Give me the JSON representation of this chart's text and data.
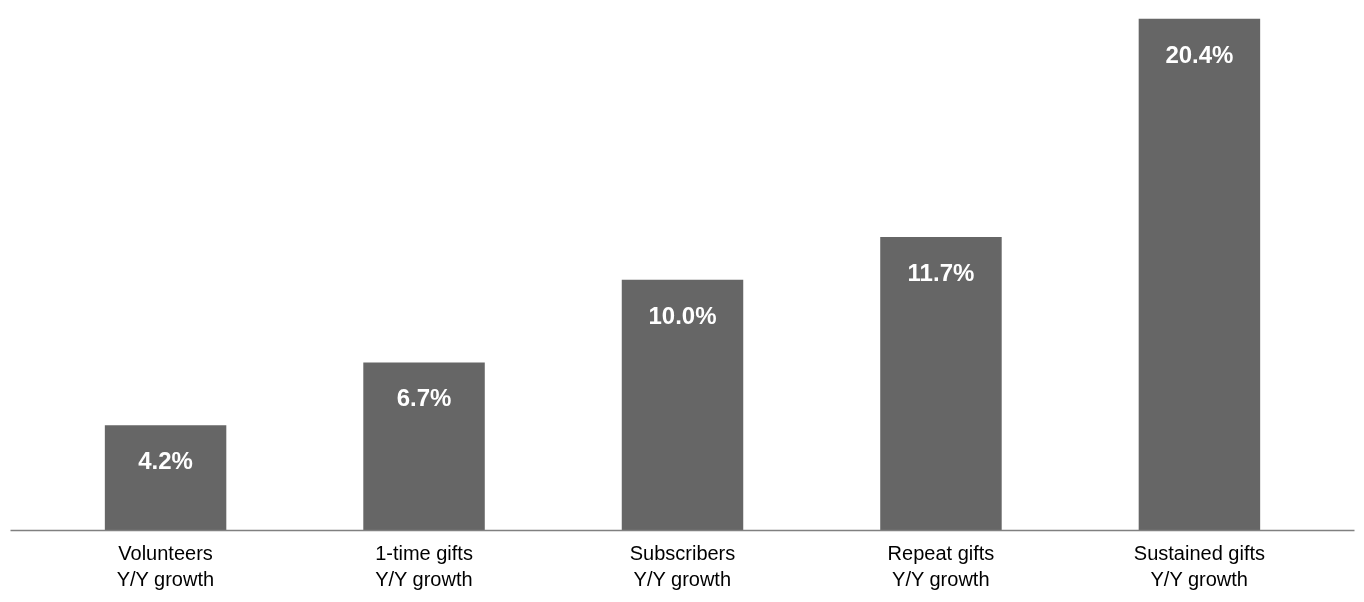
{
  "chart_data": {
    "type": "bar",
    "categories": [
      "Volunteers\nY/Y growth",
      "1-time gifts\nY/Y growth",
      "Subscribers\nY/Y growth",
      "Repeat gifts\nY/Y growth",
      "Sustained gifts\nY/Y growth"
    ],
    "values": [
      4.2,
      6.7,
      10.0,
      11.7,
      20.4
    ],
    "value_labels": [
      "4.2%",
      "6.7%",
      "10.0%",
      "11.7%",
      "20.4%"
    ],
    "color": "#666666",
    "grid": false,
    "tick_labels": "x"
  }
}
